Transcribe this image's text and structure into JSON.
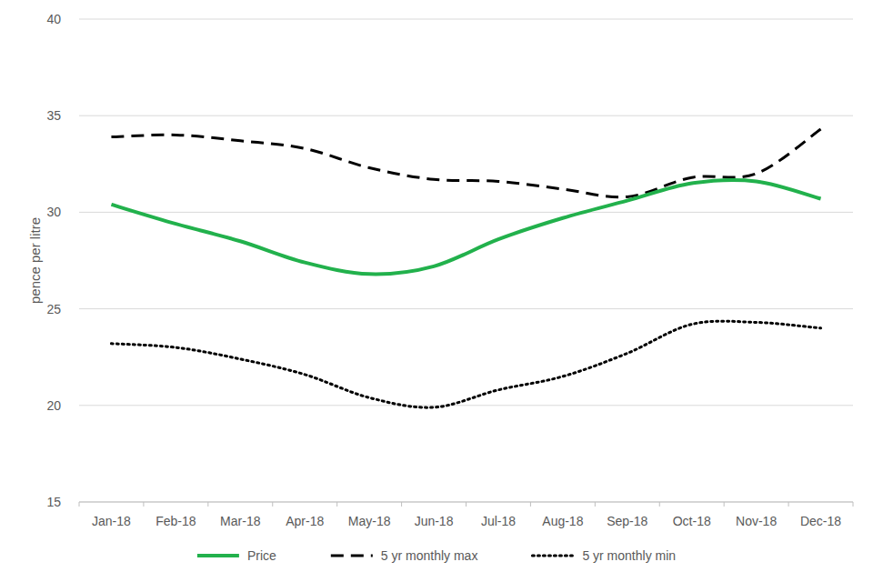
{
  "chart_data": {
    "type": "line",
    "y_label": "pence per litre",
    "categories": [
      "Jan-18",
      "Feb-18",
      "Mar-18",
      "Apr-18",
      "May-18",
      "Jun-18",
      "Jul-18",
      "Aug-18",
      "Sep-18",
      "Oct-18",
      "Nov-18",
      "Dec-18"
    ],
    "series": [
      {
        "name": "Price",
        "color": "#22b14c",
        "line_style": "solid",
        "values": [
          30.4,
          29.4,
          28.5,
          27.4,
          26.8,
          27.2,
          28.6,
          29.7,
          30.6,
          31.5,
          31.6,
          30.7
        ]
      },
      {
        "name": "5 yr monthly max",
        "color": "#000000",
        "line_style": "dashed",
        "values": [
          33.9,
          34.0,
          33.7,
          33.3,
          32.3,
          31.7,
          31.6,
          31.2,
          30.8,
          31.8,
          32.0,
          34.3
        ]
      },
      {
        "name": "5 yr monthly min",
        "color": "#000000",
        "line_style": "dotted",
        "values": [
          23.2,
          23.0,
          22.4,
          21.6,
          20.4,
          19.9,
          20.8,
          21.5,
          22.7,
          24.2,
          24.3,
          24.0
        ]
      }
    ],
    "ylim": [
      15,
      40
    ],
    "yticks": [
      15,
      20,
      25,
      30,
      35,
      40
    ],
    "grid": true,
    "legend": "bottom"
  }
}
